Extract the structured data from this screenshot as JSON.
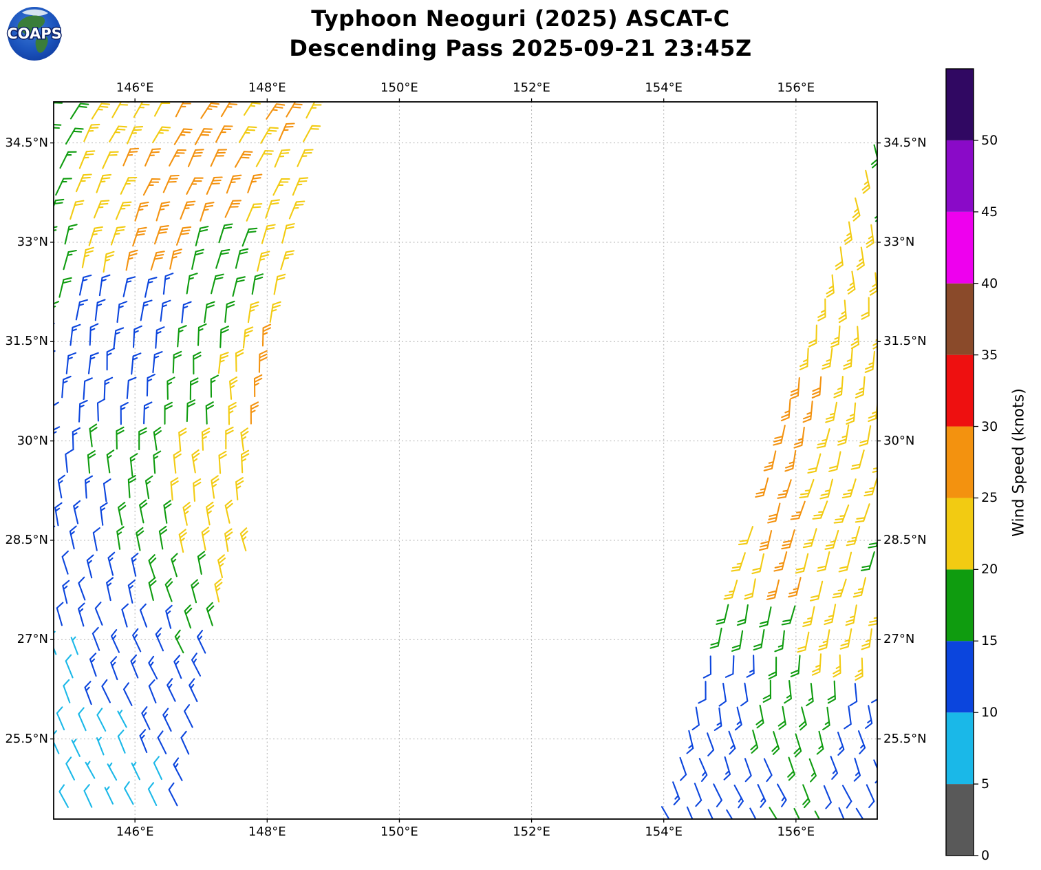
{
  "header": {
    "logo_text": "COAPS",
    "title_line1": "Typhoon Neoguri (2025) ASCAT-C",
    "title_line2": "Descending Pass 2025-09-21 23:45Z"
  },
  "chart_data": {
    "type": "wind_barb_map",
    "title": "Typhoon Neoguri (2025) ASCAT-C Descending Pass 2025-09-21 23:45Z",
    "storm": "Typhoon Neoguri (2025)",
    "instrument": "ASCAT-C",
    "pass_type": "Descending",
    "pass_datetime": "2025-09-21 23:45Z",
    "x_axis": {
      "tick_labels": [
        "146°E",
        "148°E",
        "150°E",
        "152°E",
        "154°E",
        "156°E"
      ],
      "tick_lons": [
        146,
        148,
        150,
        152,
        154,
        156
      ],
      "lon_min": 144.77,
      "lon_max": 157.23,
      "grid": true
    },
    "y_axis": {
      "tick_labels": [
        "34.5°N",
        "33°N",
        "31.5°N",
        "30°N",
        "28.5°N",
        "27°N",
        "25.5°N"
      ],
      "tick_lats": [
        34.5,
        33,
        31.5,
        30,
        28.5,
        27,
        25.5
      ],
      "lat_min": 24.29,
      "lat_max": 35.12,
      "grid": true
    },
    "colors": {
      "gray": "#595959",
      "cyan": "#1ab8e8",
      "blue": "#0b45dd",
      "green": "#0f9c0f",
      "yellow": "#f2cb12",
      "orange": "#f3920f",
      "red": "#ee1010",
      "brown": "#8a4a2a",
      "magenta": "#ee00ee",
      "purple": "#8a0ac8",
      "navy": "#300862"
    },
    "colorbar": {
      "label": "Wind Speed (knots)",
      "tick_values": [
        0,
        5,
        10,
        15,
        20,
        25,
        30,
        35,
        40,
        45,
        50
      ],
      "value_max": 55,
      "segments": [
        {
          "from": 0,
          "to": 5,
          "color_key": "gray"
        },
        {
          "from": 5,
          "to": 10,
          "color_key": "cyan"
        },
        {
          "from": 10,
          "to": 15,
          "color_key": "blue"
        },
        {
          "from": 15,
          "to": 20,
          "color_key": "green"
        },
        {
          "from": 20,
          "to": 25,
          "color_key": "yellow"
        },
        {
          "from": 25,
          "to": 30,
          "color_key": "orange"
        },
        {
          "from": 30,
          "to": 35,
          "color_key": "red"
        },
        {
          "from": 35,
          "to": 40,
          "color_key": "brown"
        },
        {
          "from": 40,
          "to": 45,
          "color_key": "magenta"
        },
        {
          "from": 45,
          "to": 50,
          "color_key": "purple"
        },
        {
          "from": 50,
          "to": 55,
          "color_key": "navy"
        }
      ]
    },
    "speed_by_color": {
      "gray": 3,
      "cyan": 8,
      "blue": 13,
      "green": 18,
      "yellow": 23,
      "orange": 27
    },
    "grid_spacing": {
      "dlat": 0.385,
      "dlon": 0.328
    },
    "swaths": [
      {
        "name": "west-swath",
        "lat_start": 35.28,
        "lat_end": 24.18,
        "west_lon_limit": 144.6,
        "east_edge": {
          "lat_ref": 35.12,
          "lon_ref": 148.85,
          "dlon_dlat": 0.188
        },
        "lon_anchor": 144.75,
        "columns": 16,
        "column_slope": 0.188,
        "direction_profile": [
          [
            35.3,
            32
          ],
          [
            33.5,
            22
          ],
          [
            32.5,
            12
          ],
          [
            31.0,
            2
          ],
          [
            29.5,
            -6
          ],
          [
            28.0,
            -14
          ],
          [
            26.8,
            -22
          ],
          [
            25.5,
            -26
          ],
          [
            24.2,
            -24
          ]
        ],
        "speed_zones": [
          {
            "lat_min": 34.2,
            "lat_max": 35.4,
            "bands": [
              {
                "f0": 0,
                "f1": 0.12,
                "c": "green"
              },
              {
                "f0": 0.12,
                "f1": 0.42,
                "c": "yellow"
              },
              {
                "f0": 0.42,
                "f1": 0.7,
                "c": "orange"
              },
              {
                "f0": 0.7,
                "f1": 0.79,
                "c": "yellow"
              },
              {
                "f0": 0.79,
                "f1": 0.92,
                "c": "orange"
              },
              {
                "f0": 0.92,
                "f1": 1,
                "c": "yellow"
              }
            ]
          },
          {
            "lat_min": 33.2,
            "lat_max": 34.2,
            "bands": [
              {
                "f0": 0,
                "f1": 0.1,
                "c": "green"
              },
              {
                "f0": 0.1,
                "f1": 0.3,
                "c": "yellow"
              },
              {
                "f0": 0.3,
                "f1": 0.78,
                "c": "orange"
              },
              {
                "f0": 0.78,
                "f1": 1,
                "c": "yellow"
              }
            ]
          },
          {
            "lat_min": 32.3,
            "lat_max": 33.2,
            "bands": [
              {
                "f0": 0,
                "f1": 0.1,
                "c": "green"
              },
              {
                "f0": 0.1,
                "f1": 0.32,
                "c": "yellow"
              },
              {
                "f0": 0.32,
                "f1": 0.55,
                "c": "orange"
              },
              {
                "f0": 0.55,
                "f1": 0.85,
                "c": "green"
              },
              {
                "f0": 0.85,
                "f1": 1,
                "c": "yellow"
              }
            ]
          },
          {
            "lat_min": 31.5,
            "lat_max": 32.3,
            "bands": [
              {
                "f0": 0,
                "f1": 0.08,
                "c": "green"
              },
              {
                "f0": 0.08,
                "f1": 0.58,
                "c": "blue"
              },
              {
                "f0": 0.58,
                "f1": 0.86,
                "c": "green"
              },
              {
                "f0": 0.86,
                "f1": 1,
                "c": "yellow"
              }
            ]
          },
          {
            "lat_min": 30.0,
            "lat_max": 31.5,
            "bands": [
              {
                "f0": 0,
                "f1": 0.55,
                "c": "blue"
              },
              {
                "f0": 0.55,
                "f1": 0.77,
                "c": "green"
              },
              {
                "f0": 0.77,
                "f1": 0.92,
                "c": "yellow"
              },
              {
                "f0": 0.92,
                "f1": 1,
                "c": "orange"
              }
            ]
          },
          {
            "lat_min": 29.2,
            "lat_max": 30.0,
            "bands": [
              {
                "f0": 0,
                "f1": 0.15,
                "c": "blue"
              },
              {
                "f0": 0.15,
                "f1": 0.55,
                "c": "green"
              },
              {
                "f0": 0.55,
                "f1": 1,
                "c": "yellow"
              }
            ]
          },
          {
            "lat_min": 28.3,
            "lat_max": 29.2,
            "bands": [
              {
                "f0": 0,
                "f1": 0.32,
                "c": "blue"
              },
              {
                "f0": 0.32,
                "f1": 0.62,
                "c": "green"
              },
              {
                "f0": 0.62,
                "f1": 1,
                "c": "yellow"
              }
            ]
          },
          {
            "lat_min": 27.5,
            "lat_max": 28.3,
            "bands": [
              {
                "f0": 0,
                "f1": 0.55,
                "c": "blue"
              },
              {
                "f0": 0.55,
                "f1": 0.85,
                "c": "green"
              },
              {
                "f0": 0.85,
                "f1": 1,
                "c": "yellow"
              }
            ]
          },
          {
            "lat_min": 26.8,
            "lat_max": 27.5,
            "bands": [
              {
                "f0": 0,
                "f1": 0.72,
                "c": "blue"
              },
              {
                "f0": 0.72,
                "f1": 1,
                "c": "green"
              }
            ]
          },
          {
            "lat_min": 26.0,
            "lat_max": 26.8,
            "bands": [
              {
                "f0": 0,
                "f1": 0.22,
                "c": "cyan"
              },
              {
                "f0": 0.22,
                "f1": 0.95,
                "c": "blue"
              },
              {
                "f0": 0.95,
                "f1": 1,
                "c": "green"
              }
            ]
          },
          {
            "lat_min": 25.2,
            "lat_max": 26.0,
            "bands": [
              {
                "f0": 0,
                "f1": 0.55,
                "c": "cyan"
              },
              {
                "f0": 0.55,
                "f1": 1,
                "c": "blue"
              }
            ]
          },
          {
            "lat_min": 24.0,
            "lat_max": 25.2,
            "bands": [
              {
                "f0": 0,
                "f1": 0.9,
                "c": "cyan"
              },
              {
                "f0": 0.9,
                "f1": 1,
                "c": "blue"
              }
            ]
          }
        ]
      },
      {
        "name": "east-swath",
        "lat_start": 34.45,
        "lat_end": 24.18,
        "east_lon_limit": 157.35,
        "west_edge": {
          "lat_ref": 34.5,
          "lon_ref": 157.07,
          "dlon_dlat": 0.316
        },
        "lon_anchor": 153.55,
        "columns": 24,
        "column_slope": 0.316,
        "direction_profile": [
          [
            34.6,
            162
          ],
          [
            33.0,
            172
          ],
          [
            31.5,
            182
          ],
          [
            30.0,
            192
          ],
          [
            28.8,
            198
          ],
          [
            27.5,
            192
          ],
          [
            26.5,
            178
          ],
          [
            25.5,
            162
          ],
          [
            24.2,
            150
          ]
        ],
        "speed_zones": [
          {
            "lat_min": 34.2,
            "lat_max": 34.7,
            "bands": [
              {
                "f0": 0,
                "f1": 1,
                "c": "green"
              }
            ]
          },
          {
            "lat_min": 33.1,
            "lat_max": 34.2,
            "bands": [
              {
                "f0": 0,
                "f1": 0.72,
                "c": "yellow"
              },
              {
                "f0": 0.72,
                "f1": 1,
                "c": "green"
              }
            ]
          },
          {
            "lat_min": 31.1,
            "lat_max": 33.1,
            "bands": [
              {
                "f0": 0,
                "f1": 1,
                "c": "yellow"
              }
            ]
          },
          {
            "lat_min": 29.4,
            "lat_max": 31.1,
            "bands": [
              {
                "f0": 0,
                "f1": 0.3,
                "c": "orange"
              },
              {
                "f0": 0.3,
                "f1": 1,
                "c": "yellow"
              }
            ]
          },
          {
            "lat_min": 28.4,
            "lat_max": 29.4,
            "bands": [
              {
                "f0": 0,
                "f1": 0.1,
                "c": "yellow"
              },
              {
                "f0": 0.1,
                "f1": 0.45,
                "c": "orange"
              },
              {
                "f0": 0.45,
                "f1": 0.92,
                "c": "yellow"
              },
              {
                "f0": 0.92,
                "f1": 1,
                "c": "green"
              }
            ]
          },
          {
            "lat_min": 27.6,
            "lat_max": 28.4,
            "bands": [
              {
                "f0": 0,
                "f1": 0.22,
                "c": "yellow"
              },
              {
                "f0": 0.22,
                "f1": 0.48,
                "c": "orange"
              },
              {
                "f0": 0.48,
                "f1": 0.9,
                "c": "yellow"
              },
              {
                "f0": 0.9,
                "f1": 1,
                "c": "green"
              }
            ]
          },
          {
            "lat_min": 27.0,
            "lat_max": 27.6,
            "bands": [
              {
                "f0": 0,
                "f1": 0.5,
                "c": "green"
              },
              {
                "f0": 0.5,
                "f1": 1,
                "c": "yellow"
              }
            ]
          },
          {
            "lat_min": 26.4,
            "lat_max": 27.0,
            "bands": [
              {
                "f0": 0,
                "f1": 0.3,
                "c": "blue"
              },
              {
                "f0": 0.3,
                "f1": 0.62,
                "c": "green"
              },
              {
                "f0": 0.62,
                "f1": 0.88,
                "c": "yellow"
              },
              {
                "f0": 0.88,
                "f1": 1,
                "c": "green"
              }
            ]
          },
          {
            "lat_min": 25.6,
            "lat_max": 26.4,
            "bands": [
              {
                "f0": 0,
                "f1": 0.35,
                "c": "blue"
              },
              {
                "f0": 0.35,
                "f1": 0.78,
                "c": "green"
              },
              {
                "f0": 0.78,
                "f1": 1,
                "c": "blue"
              }
            ]
          },
          {
            "lat_min": 24.0,
            "lat_max": 25.6,
            "bands": [
              {
                "f0": 0,
                "f1": 0.5,
                "c": "blue"
              },
              {
                "f0": 0.5,
                "f1": 0.72,
                "c": "green"
              },
              {
                "f0": 0.72,
                "f1": 1,
                "c": "blue"
              }
            ]
          }
        ]
      }
    ]
  }
}
